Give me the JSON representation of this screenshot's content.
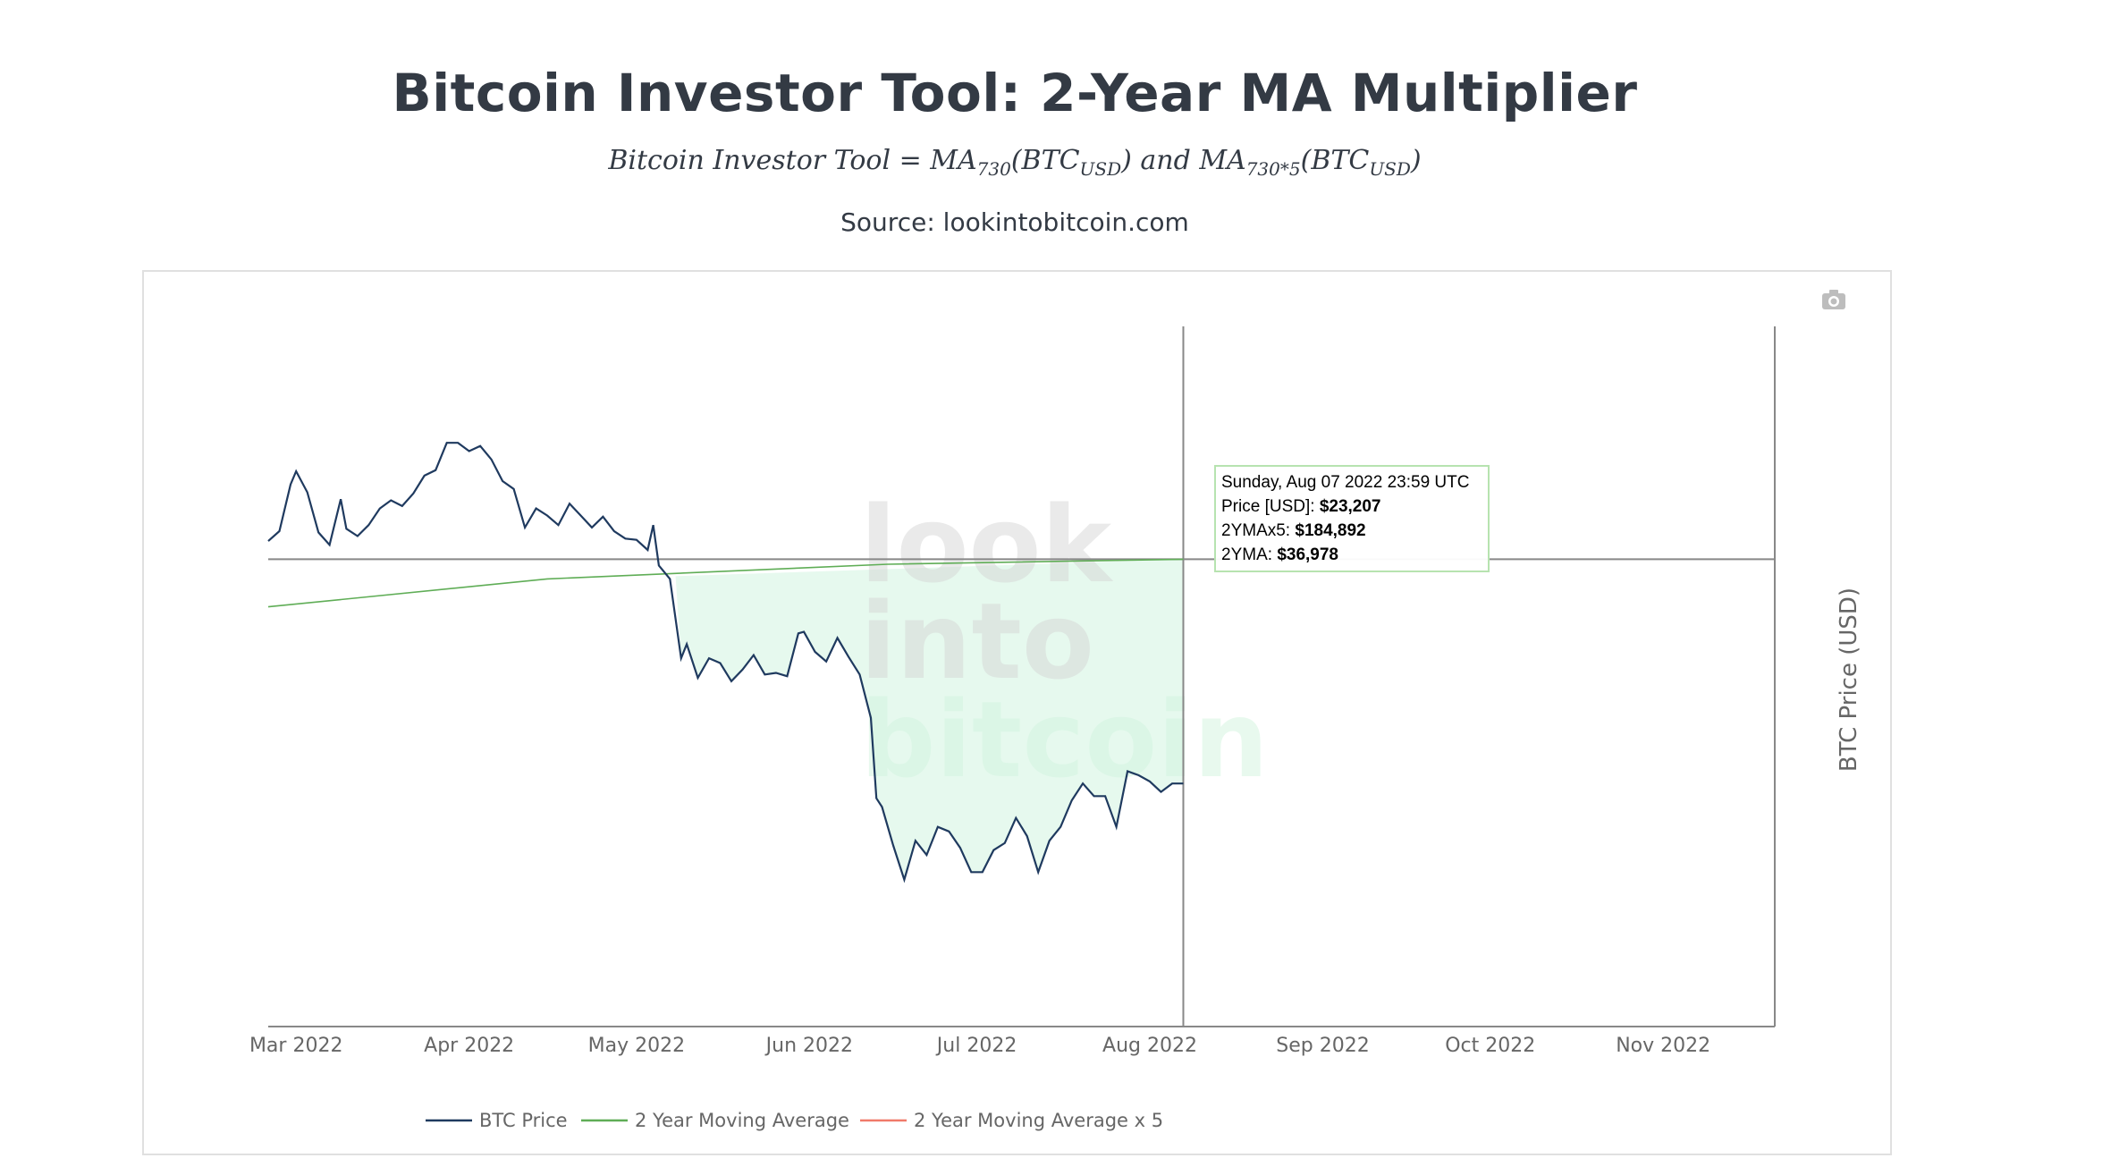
{
  "header": {
    "title": "Bitcoin Investor Tool: 2-Year MA Multiplier",
    "formula_lhs": "Bitcoin Investor Tool = MA",
    "formula_sub1": "730",
    "formula_mid1": "(BTC",
    "formula_sub2": "USD",
    "formula_mid2": ") and MA",
    "formula_sub3": "730*5",
    "formula_mid3": "(BTC",
    "formula_sub4": "USD",
    "formula_end": ")",
    "source": "Source: lookintobitcoin.com"
  },
  "toolbar": {
    "camera_icon": "camera-icon"
  },
  "watermark": {
    "line1": "look",
    "line2": "into",
    "line3": "bitcoin"
  },
  "tooltip": {
    "date": "Sunday, Aug 07 2022 23:59 UTC",
    "price_label": "Price [USD]: ",
    "price_value": "$23,207",
    "ma5_label": "2YMAx5: ",
    "ma5_value": "$184,892",
    "ma_label": "2YMA: ",
    "ma_value": "$36,978"
  },
  "colors": {
    "btc_price": "#1f3a5f",
    "ma": "#5fad56",
    "ma5": "#f07a6a",
    "fill": "#e6f9ee",
    "axis": "#888888"
  },
  "chart_data": {
    "type": "line",
    "title": "Bitcoin Investor Tool: 2-Year MA Multiplier",
    "ylabel": "BTC Price (USD)",
    "x_tick_labels": [
      "Mar 2022",
      "Apr 2022",
      "May 2022",
      "Jun 2022",
      "Jul 2022",
      "Aug 2022",
      "Sep 2022",
      "Oct 2022",
      "Nov 2022"
    ],
    "x_range": [
      "2022-02-24",
      "2022-11-21"
    ],
    "y_scale": "log",
    "y_range": [
      14000,
      60000
    ],
    "grid": false,
    "legend_position": "bottom",
    "crosshair_date": "2022-08-07",
    "series": [
      {
        "name": "BTC Price",
        "points": [
          [
            "2022-02-24",
            38400
          ],
          [
            "2022-02-26",
            39200
          ],
          [
            "2022-02-28",
            43200
          ],
          [
            "2022-03-01",
            44400
          ],
          [
            "2022-03-03",
            42500
          ],
          [
            "2022-03-05",
            39100
          ],
          [
            "2022-03-07",
            38100
          ],
          [
            "2022-03-09",
            41900
          ],
          [
            "2022-03-10",
            39400
          ],
          [
            "2022-03-12",
            38800
          ],
          [
            "2022-03-14",
            39700
          ],
          [
            "2022-03-16",
            41100
          ],
          [
            "2022-03-18",
            41800
          ],
          [
            "2022-03-20",
            41300
          ],
          [
            "2022-03-22",
            42400
          ],
          [
            "2022-03-24",
            44000
          ],
          [
            "2022-03-26",
            44500
          ],
          [
            "2022-03-28",
            47100
          ],
          [
            "2022-03-30",
            47100
          ],
          [
            "2022-04-01",
            46300
          ],
          [
            "2022-04-03",
            46800
          ],
          [
            "2022-04-05",
            45500
          ],
          [
            "2022-04-07",
            43500
          ],
          [
            "2022-04-09",
            42800
          ],
          [
            "2022-04-11",
            39500
          ],
          [
            "2022-04-13",
            41100
          ],
          [
            "2022-04-15",
            40500
          ],
          [
            "2022-04-17",
            39700
          ],
          [
            "2022-04-19",
            41500
          ],
          [
            "2022-04-21",
            40500
          ],
          [
            "2022-04-23",
            39500
          ],
          [
            "2022-04-25",
            40400
          ],
          [
            "2022-04-27",
            39200
          ],
          [
            "2022-04-29",
            38600
          ],
          [
            "2022-05-01",
            38500
          ],
          [
            "2022-05-03",
            37700
          ],
          [
            "2022-05-04",
            39700
          ],
          [
            "2022-05-05",
            36500
          ],
          [
            "2022-05-07",
            35500
          ],
          [
            "2022-05-09",
            30100
          ],
          [
            "2022-05-10",
            31000
          ],
          [
            "2022-05-12",
            28900
          ],
          [
            "2022-05-14",
            30100
          ],
          [
            "2022-05-16",
            29800
          ],
          [
            "2022-05-18",
            28700
          ],
          [
            "2022-05-20",
            29400
          ],
          [
            "2022-05-22",
            30300
          ],
          [
            "2022-05-24",
            29100
          ],
          [
            "2022-05-26",
            29200
          ],
          [
            "2022-05-28",
            29000
          ],
          [
            "2022-05-30",
            31700
          ],
          [
            "2022-05-31",
            31800
          ],
          [
            "2022-06-02",
            30500
          ],
          [
            "2022-06-04",
            29900
          ],
          [
            "2022-06-06",
            31400
          ],
          [
            "2022-06-08",
            30200
          ],
          [
            "2022-06-10",
            29100
          ],
          [
            "2022-06-12",
            26600
          ],
          [
            "2022-06-13",
            22500
          ],
          [
            "2022-06-14",
            22100
          ],
          [
            "2022-06-16",
            20400
          ],
          [
            "2022-06-18",
            19000
          ],
          [
            "2022-06-20",
            20600
          ],
          [
            "2022-06-22",
            20000
          ],
          [
            "2022-06-24",
            21200
          ],
          [
            "2022-06-26",
            21000
          ],
          [
            "2022-06-28",
            20300
          ],
          [
            "2022-06-30",
            19300
          ],
          [
            "2022-07-02",
            19300
          ],
          [
            "2022-07-04",
            20200
          ],
          [
            "2022-07-06",
            20500
          ],
          [
            "2022-07-08",
            21600
          ],
          [
            "2022-07-10",
            20800
          ],
          [
            "2022-07-12",
            19300
          ],
          [
            "2022-07-14",
            20600
          ],
          [
            "2022-07-16",
            21200
          ],
          [
            "2022-07-18",
            22400
          ],
          [
            "2022-07-20",
            23200
          ],
          [
            "2022-07-22",
            22600
          ],
          [
            "2022-07-24",
            22600
          ],
          [
            "2022-07-26",
            21200
          ],
          [
            "2022-07-28",
            23800
          ],
          [
            "2022-07-30",
            23600
          ],
          [
            "2022-08-01",
            23300
          ],
          [
            "2022-08-03",
            22800
          ],
          [
            "2022-08-05",
            23200
          ],
          [
            "2022-08-07",
            23200
          ]
        ]
      },
      {
        "name": "2 Year Moving Average",
        "points": [
          [
            "2022-02-24",
            33500
          ],
          [
            "2022-04-15",
            35500
          ],
          [
            "2022-06-15",
            36600
          ],
          [
            "2022-08-07",
            36978
          ]
        ]
      },
      {
        "name": "2 Year Moving Average x 5",
        "points": []
      }
    ]
  }
}
